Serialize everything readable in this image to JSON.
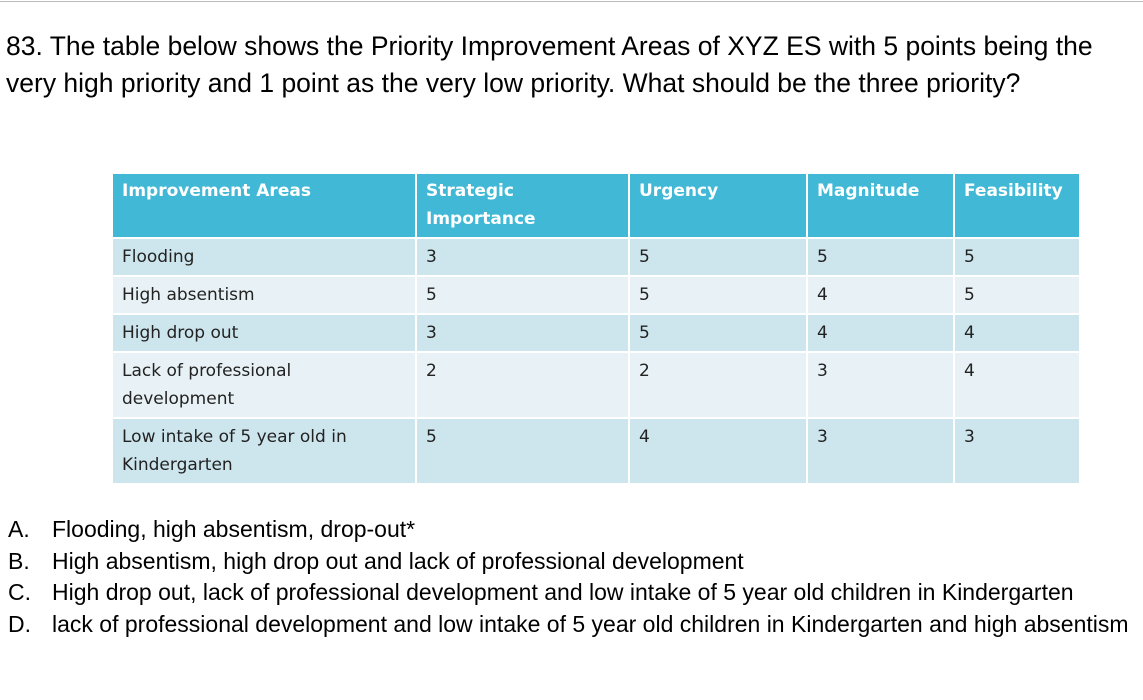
{
  "question": "83. The table below shows the Priority Improvement Areas of XYZ ES with 5 points being the  very high priority and 1 point as the very low priority. What should be the three priority?",
  "table": {
    "headers": [
      "Improvement Areas",
      "Strategic Importance",
      "Urgency",
      "Magnitude",
      "Feasibility"
    ],
    "rows": [
      [
        "Flooding",
        3,
        5,
        5,
        5
      ],
      [
        "High absentism",
        5,
        5,
        4,
        5
      ],
      [
        "High drop out",
        3,
        5,
        4,
        4
      ],
      [
        "Lack of professional development",
        2,
        2,
        3,
        4
      ],
      [
        "Low  intake of 5 year old in Kindergarten",
        5,
        4,
        3,
        3
      ]
    ]
  },
  "options": [
    {
      "letter": "A.",
      "text": "Flooding, high absentism, drop-out*"
    },
    {
      "letter": "B.",
      "text": "High absentism, high drop out and lack of professional development"
    },
    {
      "letter": "C.",
      "text": "High drop out, lack of professional development and low intake of 5 year old children in Kindergarten"
    },
    {
      "letter": "D.",
      "text": "lack of professional development and low intake of 5 year old children in Kindergarten and high absentism"
    }
  ]
}
